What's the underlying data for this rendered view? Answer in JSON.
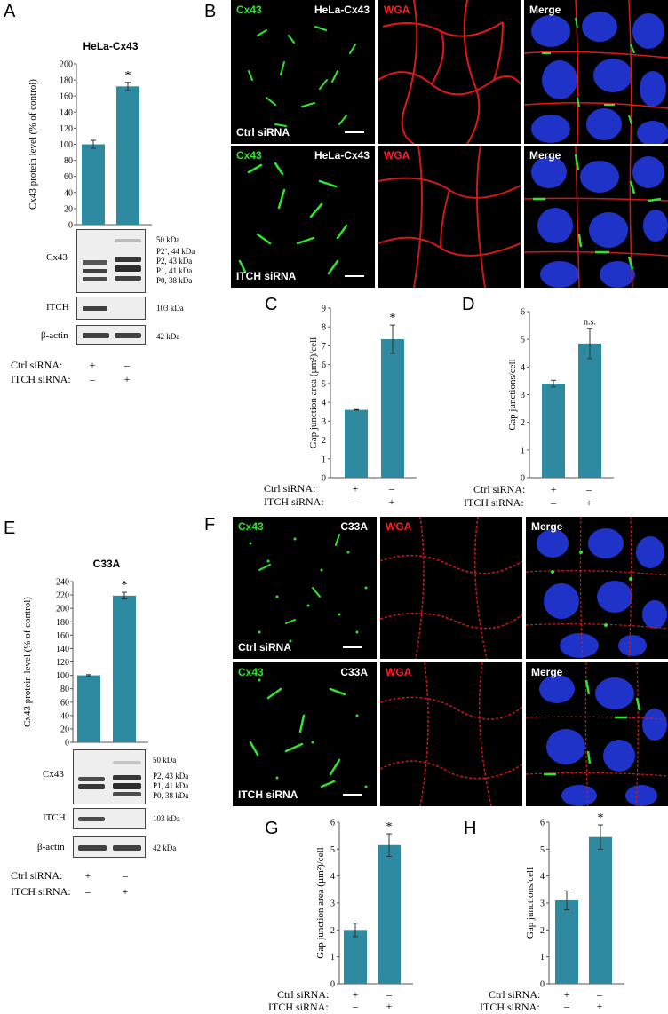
{
  "panels": {
    "A": {
      "label": "A",
      "chart_data": {
        "type": "bar",
        "title": "HeLa-Cx43",
        "ylabel": "Cx43 protein level (% of control)",
        "ylim": [
          0,
          200
        ],
        "yticks": [
          0,
          20,
          40,
          60,
          80,
          100,
          120,
          140,
          160,
          180,
          200
        ],
        "categories": [
          "Ctrl siRNA",
          "ITCH siRNA"
        ],
        "values": [
          100,
          172
        ],
        "errors": [
          5,
          5
        ],
        "annotations": [
          "",
          "*"
        ]
      },
      "blot": {
        "cx43_label": "Cx43",
        "markers": [
          "50 kDa",
          "P2’, 44 kDa",
          "P2, 43 kDa",
          "P1, 41 kDa",
          "P0, 38 kDa"
        ],
        "itch_label": "ITCH",
        "itch_marker": "103 kDa",
        "actin_label": "β-actin",
        "actin_marker": "42 kDa"
      },
      "conditions": {
        "ctrl_label": "Ctrl siRNA:",
        "itch_label": "ITCH siRNA:",
        "ctrl_signs": [
          "+",
          "–"
        ],
        "itch_signs": [
          "–",
          "+"
        ]
      }
    },
    "B": {
      "label": "B",
      "row1": {
        "cx43": "Cx43",
        "cell": "HeLa-Cx43",
        "wga": "WGA",
        "merge": "Merge",
        "condition": "Ctrl siRNA"
      },
      "row2": {
        "cx43": "Cx43",
        "cell": "HeLa-Cx43",
        "wga": "WGA",
        "merge": "Merge",
        "condition": "ITCH siRNA"
      }
    },
    "C": {
      "label": "C",
      "chart_data": {
        "type": "bar",
        "ylabel": "Gap junction area (µm²)/cell",
        "ylim": [
          0,
          9
        ],
        "yticks": [
          0,
          1,
          2,
          3,
          4,
          5,
          6,
          7,
          8,
          9
        ],
        "categories": [
          "Ctrl siRNA",
          "ITCH siRNA"
        ],
        "values": [
          3.6,
          7.35
        ],
        "errors": [
          0.02,
          0.75
        ],
        "annotations": [
          "",
          "*"
        ]
      },
      "conditions": {
        "ctrl_label": "Ctrl siRNA:",
        "itch_label": "ITCH siRNA:",
        "ctrl_signs": [
          "+",
          "–"
        ],
        "itch_signs": [
          "–",
          "+"
        ]
      }
    },
    "D": {
      "label": "D",
      "chart_data": {
        "type": "bar",
        "ylabel": "Gap junctions/cell",
        "ylim": [
          0,
          6
        ],
        "yticks": [
          0,
          1,
          2,
          3,
          4,
          5,
          6
        ],
        "categories": [
          "Ctrl siRNA",
          "ITCH siRNA"
        ],
        "values": [
          3.4,
          4.85
        ],
        "errors": [
          0.12,
          0.55
        ],
        "annotations": [
          "",
          "n.s."
        ]
      },
      "conditions": {
        "ctrl_label": "Ctrl siRNA:",
        "itch_label": "ITCH siRNA:",
        "ctrl_signs": [
          "+",
          "–"
        ],
        "itch_signs": [
          "–",
          "+"
        ]
      }
    },
    "E": {
      "label": "E",
      "chart_data": {
        "type": "bar",
        "title": "C33A",
        "ylabel": "Cx43 protein level (% of control)",
        "ylim": [
          0,
          240
        ],
        "yticks": [
          0,
          20,
          40,
          60,
          80,
          100,
          120,
          140,
          160,
          180,
          200,
          220,
          240
        ],
        "categories": [
          "Ctrl siRNA",
          "ITCH siRNA"
        ],
        "values": [
          100,
          219
        ],
        "errors": [
          1,
          5
        ],
        "annotations": [
          "",
          "*"
        ]
      },
      "blot": {
        "cx43_label": "Cx43",
        "markers": [
          "50 kDa",
          "P2, 43 kDa",
          "P1, 41 kDa",
          "P0, 38 kDa"
        ],
        "itch_label": "ITCH",
        "itch_marker": "103 kDa",
        "actin_label": "β-actin",
        "actin_marker": "42 kDa"
      },
      "conditions": {
        "ctrl_label": "Ctrl siRNA:",
        "itch_label": "ITCH siRNA:",
        "ctrl_signs": [
          "+",
          "–"
        ],
        "itch_signs": [
          "–",
          "+"
        ]
      }
    },
    "F": {
      "label": "F",
      "row1": {
        "cx43": "Cx43",
        "cell": "C33A",
        "wga": "WGA",
        "merge": "Merge",
        "condition": "Ctrl siRNA"
      },
      "row2": {
        "cx43": "Cx43",
        "cell": "C33A",
        "wga": "WGA",
        "merge": "Merge",
        "condition": "ITCH siRNA"
      }
    },
    "G": {
      "label": "G",
      "chart_data": {
        "type": "bar",
        "ylabel": "Gap junction area (µm²)/cell",
        "ylim": [
          0,
          6
        ],
        "yticks": [
          0,
          1,
          2,
          3,
          4,
          5,
          6
        ],
        "categories": [
          "Ctrl siRNA",
          "ITCH siRNA"
        ],
        "values": [
          2.0,
          5.15
        ],
        "errors": [
          0.25,
          0.42
        ],
        "annotations": [
          "",
          "*"
        ]
      },
      "conditions": {
        "ctrl_label": "Ctrl siRNA:",
        "itch_label": "ITCH siRNA:",
        "ctrl_signs": [
          "+",
          "–"
        ],
        "itch_signs": [
          "–",
          "+"
        ]
      }
    },
    "H": {
      "label": "H",
      "chart_data": {
        "type": "bar",
        "ylabel": "Gap junctions/cell",
        "ylim": [
          0,
          6
        ],
        "yticks": [
          0,
          1,
          2,
          3,
          4,
          5,
          6
        ],
        "categories": [
          "Ctrl siRNA",
          "ITCH siRNA"
        ],
        "values": [
          3.1,
          5.45
        ],
        "errors": [
          0.35,
          0.45
        ],
        "annotations": [
          "",
          "*"
        ]
      },
      "conditions": {
        "ctrl_label": "Ctrl siRNA:",
        "itch_label": "ITCH siRNA:",
        "ctrl_signs": [
          "+",
          "–"
        ],
        "itch_signs": [
          "–",
          "+"
        ]
      }
    }
  },
  "colors": {
    "bar": "#2e8aa0",
    "cx43_channel": "#2ee62e",
    "wga_channel": "#ff2020",
    "nucleus": "#2033c8"
  }
}
